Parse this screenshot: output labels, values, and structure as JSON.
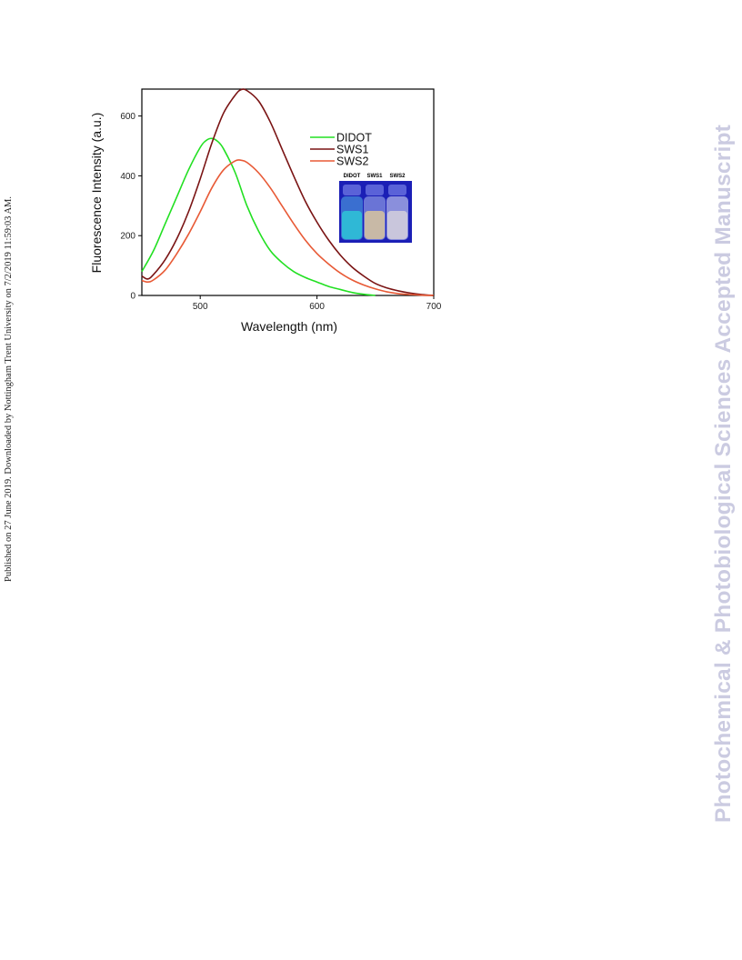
{
  "side_note": "Published on 27 June 2019. Downloaded by Nottingham Trent University on 7/2/2019 11:59:03 AM.",
  "watermark": "Photochemical & Photobiological Sciences Accepted Manuscript",
  "inset": {
    "labels": [
      "DIDOT",
      "SWS1",
      "SWS2"
    ]
  },
  "chart_data": {
    "type": "line",
    "xlabel": "Wavelength (nm)",
    "ylabel": "Fluorescence Intensity (a.u.)",
    "xlim": [
      450,
      700
    ],
    "ylim": [
      0,
      690
    ],
    "xticks": [
      500,
      600,
      700
    ],
    "yticks": [
      0,
      200,
      400,
      600
    ],
    "grid": false,
    "legend_position": "top-right",
    "series": [
      {
        "name": "DIDOT",
        "color": "#22e022",
        "x": [
          450,
          460,
          470,
          480,
          490,
          500,
          505,
          510,
          515,
          520,
          530,
          540,
          550,
          560,
          570,
          580,
          590,
          600,
          610,
          620,
          630,
          640,
          650
        ],
        "y": [
          80,
          150,
          240,
          330,
          420,
          495,
          518,
          525,
          515,
          490,
          410,
          300,
          215,
          150,
          110,
          80,
          60,
          45,
          30,
          20,
          10,
          4,
          0
        ]
      },
      {
        "name": "SWS1",
        "color": "#7a1414",
        "x": [
          450,
          455,
          460,
          470,
          480,
          490,
          500,
          510,
          520,
          530,
          535,
          540,
          550,
          560,
          570,
          580,
          590,
          600,
          610,
          620,
          630,
          640,
          650,
          660,
          670,
          680,
          690,
          700
        ],
        "y": [
          65,
          55,
          70,
          120,
          190,
          280,
          390,
          510,
          610,
          670,
          688,
          685,
          650,
          580,
          490,
          400,
          315,
          245,
          185,
          135,
          95,
          65,
          40,
          25,
          15,
          8,
          3,
          0
        ]
      },
      {
        "name": "SWS2",
        "color": "#e85a36",
        "x": [
          450,
          455,
          460,
          470,
          480,
          490,
          500,
          510,
          520,
          530,
          535,
          540,
          550,
          560,
          570,
          580,
          590,
          600,
          610,
          620,
          630,
          640,
          650,
          660,
          670,
          680,
          690,
          700
        ],
        "y": [
          50,
          45,
          52,
          85,
          140,
          205,
          280,
          360,
          420,
          450,
          452,
          445,
          410,
          360,
          300,
          240,
          185,
          140,
          105,
          75,
          52,
          35,
          22,
          12,
          6,
          3,
          1,
          0
        ]
      }
    ]
  }
}
